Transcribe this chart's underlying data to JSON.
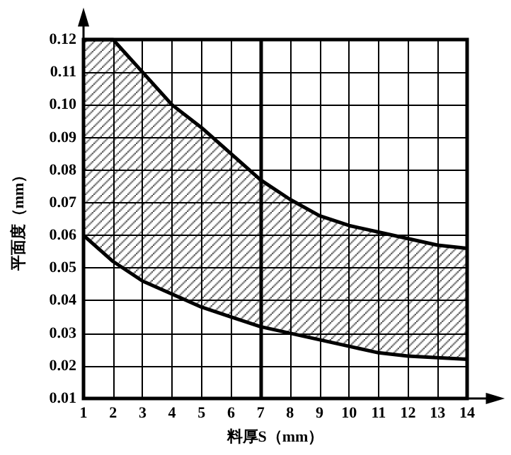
{
  "chart_data": {
    "type": "line",
    "xlabel": "料厚S（mm）",
    "ylabel": "平面度（mm）",
    "x": [
      1,
      2,
      3,
      4,
      5,
      6,
      7,
      8,
      9,
      10,
      11,
      12,
      13,
      14
    ],
    "series": [
      {
        "color": "#000000",
        "values": [
          0.12,
          0.12,
          0.11,
          0.1,
          0.093,
          0.085,
          0.077,
          0.071,
          0.066,
          0.063,
          0.061,
          0.059,
          0.057,
          0.056
        ],
        "upper": [
          0.12,
          0.12,
          0.11,
          0.1,
          0.093,
          0.085,
          0.077,
          0.071,
          0.066,
          0.063,
          0.061,
          0.059,
          0.057,
          0.056
        ],
        "lower": [
          0.06,
          0.052,
          0.046,
          0.042,
          0.038,
          0.035,
          0.032,
          0.03,
          0.028,
          0.026,
          0.024,
          0.023,
          0.0225,
          0.022
        ]
      },
      {
        "color": "#000000",
        "values": [
          0.06,
          0.052,
          0.046,
          0.042,
          0.038,
          0.035,
          0.032,
          0.03,
          0.028,
          0.026,
          0.024,
          0.023,
          0.0225,
          0.022
        ]
      }
    ],
    "xlim": [
      1,
      14
    ],
    "xticks": [
      1,
      2,
      3,
      4,
      5,
      6,
      7,
      8,
      9,
      10,
      11,
      12,
      13,
      14
    ],
    "ylim": [
      0.01,
      0.12
    ],
    "yticks": [
      {
        "value": 0.01,
        "label": "0.01"
      },
      {
        "value": 0.02,
        "label": "0.02"
      },
      {
        "value": 0.03,
        "label": "0.03"
      },
      {
        "value": 0.04,
        "label": "0.04"
      },
      {
        "value": 0.05,
        "label": "0.05"
      },
      {
        "value": 0.06,
        "label": "0.06"
      },
      {
        "value": 0.07,
        "label": "0.07"
      },
      {
        "value": 0.08,
        "label": "0.08"
      },
      {
        "value": 0.09,
        "label": "0.09"
      },
      {
        "value": 0.1,
        "label": "0.10"
      },
      {
        "value": 0.11,
        "label": "0.11"
      },
      {
        "value": 0.12,
        "label": "0.12"
      }
    ],
    "ref_lines": [
      {
        "axis": "x",
        "value": 7,
        "color": "#000000"
      }
    ],
    "grid": true,
    "marker": "none",
    "line_style": "solid"
  }
}
